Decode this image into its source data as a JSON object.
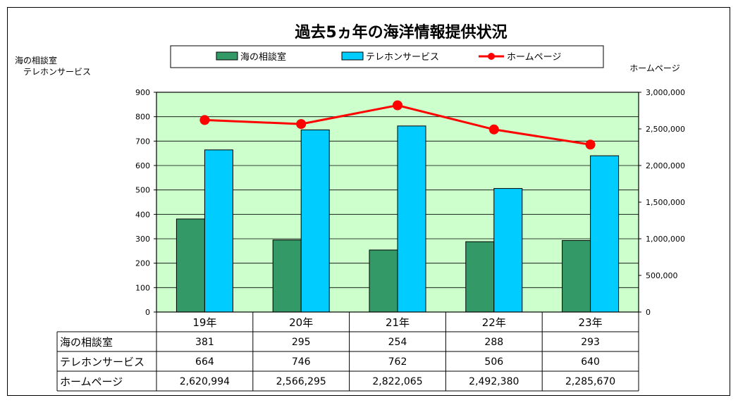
{
  "chart_data": {
    "type": "bar",
    "title": "過去5ヵ年の海洋情報提供状況",
    "categories": [
      "19年",
      "20年",
      "21年",
      "22年",
      "23年"
    ],
    "y_left_label": [
      "海の相談室",
      "テレホンサービス"
    ],
    "y_right_label": "ホームページ",
    "ylim_left": [
      0,
      900
    ],
    "ylim_right": [
      0,
      3000000
    ],
    "left_ticks": [
      "0",
      "100",
      "200",
      "300",
      "400",
      "500",
      "600",
      "700",
      "800",
      "900"
    ],
    "right_ticks": [
      "0",
      "500,000",
      "1,000,000",
      "1,500,000",
      "2,000,000",
      "2,500,000",
      "3,000,000"
    ],
    "legend": {
      "placement": "top"
    },
    "grid": "horizontal",
    "plot_background": "#ccffcc",
    "series": [
      {
        "name": "海の相談室",
        "type": "bar",
        "axis": "left",
        "color": "#339966",
        "values": [
          381,
          295,
          254,
          288,
          293
        ],
        "display": [
          "381",
          "295",
          "254",
          "288",
          "293"
        ]
      },
      {
        "name": "テレホンサービス",
        "type": "bar",
        "axis": "left",
        "color": "#00ccff",
        "values": [
          664,
          746,
          762,
          506,
          640
        ],
        "display": [
          "664",
          "746",
          "762",
          "506",
          "640"
        ]
      },
      {
        "name": "ホームページ",
        "type": "line",
        "axis": "right",
        "color": "#ff0000",
        "values": [
          2620994,
          2566295,
          2822065,
          2492380,
          2285670
        ],
        "display": [
          "2,620,994",
          "2,566,295",
          "2,822,065",
          "2,492,380",
          "2,285,670"
        ]
      }
    ]
  }
}
